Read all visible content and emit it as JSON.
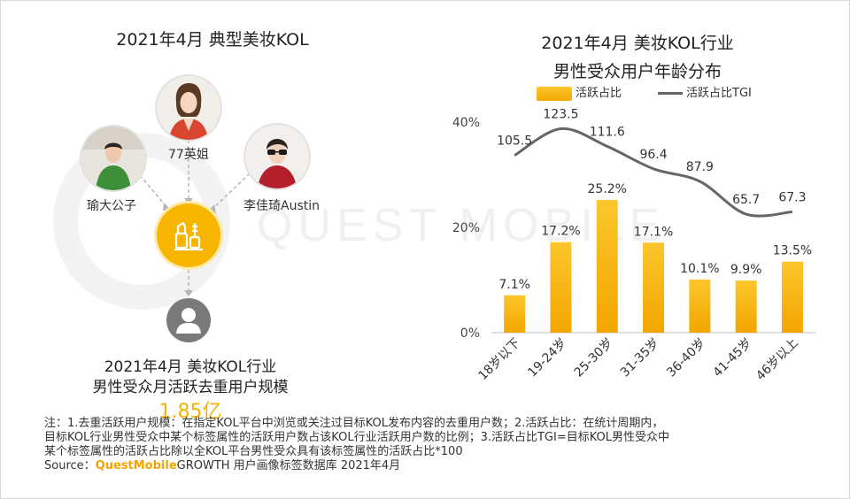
{
  "left_panel": {
    "title": "2021年4月 典型美妆KOL",
    "kols": [
      {
        "name": "77英姐"
      },
      {
        "name": "瑜大公子"
      },
      {
        "name": "李佳琦Austin"
      }
    ],
    "hub_icon": "cosmetics-icon",
    "user_icon": "user-icon",
    "stat_line1": "2021年4月 美妆KOL行业",
    "stat_line2": "男性受众月活跃去重用户规模",
    "stat_value": "1.85亿"
  },
  "right_panel": {
    "title_line1": "2021年4月 美妆KOL行业",
    "title_line2": "男性受众用户年龄分布"
  },
  "chart_data": {
    "type": "bar",
    "categories": [
      "18岁以下",
      "19-24岁",
      "25-30岁",
      "31-35岁",
      "36-40岁",
      "41-45岁",
      "46岁以上"
    ],
    "series": [
      {
        "name": "活跃占比",
        "type": "bar",
        "values": [
          7.1,
          17.2,
          25.2,
          17.1,
          10.1,
          9.9,
          13.5
        ],
        "labels": [
          "7.1%",
          "17.2%",
          "25.2%",
          "17.1%",
          "10.1%",
          "9.9%",
          "13.5%"
        ]
      },
      {
        "name": "活跃占比TGI",
        "type": "line",
        "values": [
          105.5,
          123.5,
          111.6,
          96.4,
          87.9,
          65.7,
          67.3
        ],
        "labels": [
          "105.5",
          "123.5",
          "111.6",
          "96.4",
          "87.9",
          "65.7",
          "67.3"
        ]
      }
    ],
    "y_ticks": [
      "40%",
      "20%",
      "0%"
    ],
    "ylim": [
      0,
      40
    ],
    "tgi_range": [
      40,
      140
    ],
    "legend_position": "top",
    "grid": false,
    "colors": {
      "bar": "#f7b500",
      "line": "#666666"
    }
  },
  "notes": {
    "line1": "注：1.去重活跃用户规模：在指定KOL平台中浏览或关注过目标KOL发布内容的去重用户数；2.活跃占比：在统计周期内，",
    "line2": "目标KOL行业男性受众中某个标签属性的活跃用户数占该KOL行业活跃用户数的比例；3.活跃占比TGI=目标KOL男性受众中",
    "line3": "某个标签属性的活跃占比除以全KOL平台男性受众具有该标签属性的活跃占比*100",
    "source_prefix": "Source：",
    "source_brand": "QuestMobile",
    "source_suffix": "GROWTH 用户画像标签数据库 2021年4月"
  },
  "watermark": "QUEST MOBILE"
}
